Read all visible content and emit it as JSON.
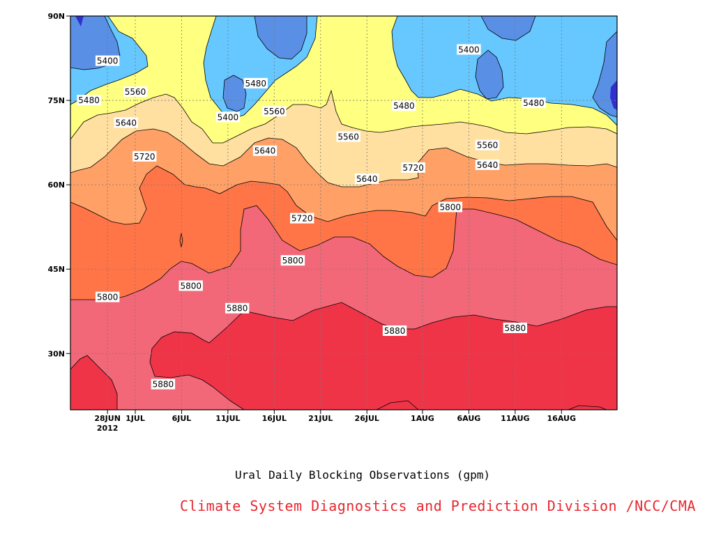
{
  "chart_data": {
    "type": "contour",
    "xlabel": "Ural Daily Blocking Observations (gpm)",
    "credit": "Climate System Diagnostics and Prediction Division /NCC/CMA",
    "ylim": [
      20,
      90
    ],
    "y_ticks": [
      {
        "value": 90,
        "label": "90N"
      },
      {
        "value": 75,
        "label": "75N"
      },
      {
        "value": 60,
        "label": "60N"
      },
      {
        "value": 45,
        "label": "45N"
      },
      {
        "value": 30,
        "label": "30N"
      }
    ],
    "x_ticks": [
      {
        "date": "2012-06-28",
        "label": "28JUN",
        "sublabel": "2012"
      },
      {
        "date": "2012-07-01",
        "label": "1JUL"
      },
      {
        "date": "2012-07-06",
        "label": "6JUL"
      },
      {
        "date": "2012-07-11",
        "label": "11JUL"
      },
      {
        "date": "2012-07-16",
        "label": "16JUL"
      },
      {
        "date": "2012-07-21",
        "label": "21JUL"
      },
      {
        "date": "2012-07-26",
        "label": "26JUL"
      },
      {
        "date": "2012-08-01",
        "label": "1AUG"
      },
      {
        "date": "2012-08-06",
        "label": "6AUG"
      },
      {
        "date": "2012-08-11",
        "label": "11AUG"
      },
      {
        "date": "2012-08-16",
        "label": "16AUG"
      }
    ],
    "grid": true,
    "contour_levels": [
      5400,
      5480,
      5560,
      5640,
      5720,
      5800,
      5880
    ],
    "level_colors": {
      "below_5400": "#5a8fe6",
      "5400_5480": "#66c8ff",
      "5480_5560": "#ffff80",
      "5560_5640": "#ffe0a0",
      "5640_5720": "#ffa066",
      "5720_5800": "#ff7548",
      "5800_5880": "#f26878",
      "above_5880": "#f03448",
      "deep_low": "#3030d0"
    },
    "contour_labels": [
      {
        "text": "5400",
        "date": "2012-06-28",
        "lat": 82
      },
      {
        "text": "5480",
        "date": "2012-06-26",
        "lat": 75
      },
      {
        "text": "5560",
        "date": "2012-07-01",
        "lat": 76.5
      },
      {
        "text": "5640",
        "date": "2012-06-30",
        "lat": 71
      },
      {
        "text": "5720",
        "date": "2012-07-02",
        "lat": 65
      },
      {
        "text": "5400",
        "date": "2012-07-11",
        "lat": 72
      },
      {
        "text": "5480",
        "date": "2012-07-14",
        "lat": 78
      },
      {
        "text": "5560",
        "date": "2012-07-16",
        "lat": 73
      },
      {
        "text": "5640",
        "date": "2012-07-15",
        "lat": 66
      },
      {
        "text": "5560",
        "date": "2012-07-24",
        "lat": 68.5
      },
      {
        "text": "5640",
        "date": "2012-07-26",
        "lat": 61
      },
      {
        "text": "5720",
        "date": "2012-07-19",
        "lat": 54
      },
      {
        "text": "5800",
        "date": "2012-07-18",
        "lat": 46.5
      },
      {
        "text": "5480",
        "date": "2012-07-30",
        "lat": 74
      },
      {
        "text": "5720",
        "date": "2012-07-31",
        "lat": 63
      },
      {
        "text": "5800",
        "date": "2012-08-04",
        "lat": 56
      },
      {
        "text": "5400",
        "date": "2012-08-06",
        "lat": 84
      },
      {
        "text": "5560",
        "date": "2012-08-08",
        "lat": 67
      },
      {
        "text": "5640",
        "date": "2012-08-08",
        "lat": 63.5
      },
      {
        "text": "5480",
        "date": "2012-08-13",
        "lat": 74.5
      },
      {
        "text": "5800",
        "date": "2012-06-28",
        "lat": 40
      },
      {
        "text": "5800",
        "date": "2012-07-07",
        "lat": 42
      },
      {
        "text": "5880",
        "date": "2012-07-12",
        "lat": 38
      },
      {
        "text": "5880",
        "date": "2012-07-29",
        "lat": 34
      },
      {
        "text": "5880",
        "date": "2012-08-11",
        "lat": 34.5
      },
      {
        "text": "5880",
        "date": "2012-07-04",
        "lat": 24.5
      }
    ]
  }
}
